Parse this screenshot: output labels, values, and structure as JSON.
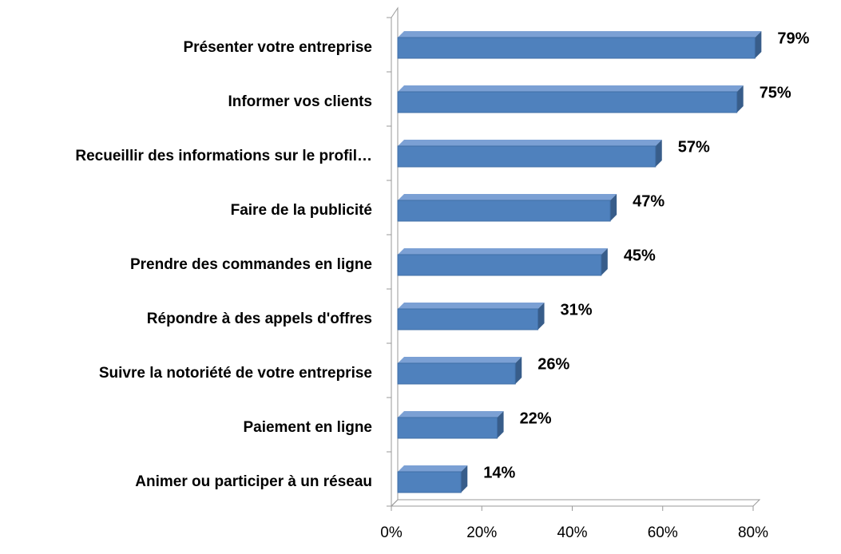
{
  "chart_data": {
    "type": "bar",
    "orientation": "horizontal",
    "categories": [
      "Présenter votre entreprise",
      "Informer vos clients",
      "Recueillir des informations sur le profil…",
      "Faire de la publicité",
      "Prendre des commandes en ligne",
      "Répondre à des appels d'offres",
      "Suivre la notoriété de votre entreprise",
      "Paiement en ligne",
      "Animer ou participer à un réseau"
    ],
    "values": [
      79,
      75,
      57,
      47,
      45,
      31,
      26,
      22,
      14
    ],
    "value_labels": [
      "79%",
      "75%",
      "57%",
      "47%",
      "45%",
      "31%",
      "26%",
      "22%",
      "14%"
    ],
    "color": "#4f81bd",
    "xlim": [
      0,
      80
    ],
    "xticks": [
      {
        "value": 0,
        "label": "0%"
      },
      {
        "value": 20,
        "label": "20%"
      },
      {
        "value": 40,
        "label": "40%"
      },
      {
        "value": 60,
        "label": "60%"
      },
      {
        "value": 80,
        "label": "80%"
      }
    ],
    "grid": false
  }
}
